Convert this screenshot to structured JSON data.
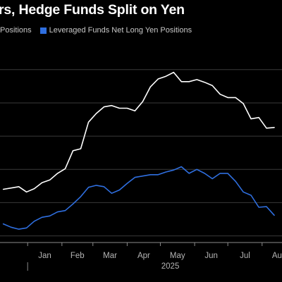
{
  "colors": {
    "background": "#000000",
    "series_white": "#ffffff",
    "series_blue": "#2f6fe0",
    "grid": "#3a3a3a",
    "axis_text": "#b4b4b4"
  },
  "chart_data": {
    "type": "line",
    "title": "rs, Hedge Funds Split on Yen",
    "legend": [
      "Positions",
      "Leveraged Funds Net Long Yen Positions"
    ],
    "x_tick_labels": [
      "Jan",
      "Feb",
      "Mar",
      "Apr",
      "May",
      "Jun",
      "Jul",
      "Aug"
    ],
    "x_year_label": "2025",
    "grid": true,
    "legend_placement": "top-left",
    "series": [
      {
        "name": "Positions",
        "color": "#ffffff",
        "points": [
          [
            "2024-12-10",
            44
          ],
          [
            "2024-12-17",
            46
          ],
          [
            "2024-12-24",
            48
          ],
          [
            "2024-12-31",
            40
          ],
          [
            "2025-01-07",
            45
          ],
          [
            "2025-01-14",
            54
          ],
          [
            "2025-01-21",
            58
          ],
          [
            "2025-01-28",
            68
          ],
          [
            "2025-02-04",
            75
          ],
          [
            "2025-02-11",
            102
          ],
          [
            "2025-02-18",
            105
          ],
          [
            "2025-02-25",
            145
          ],
          [
            "2025-03-04",
            158
          ],
          [
            "2025-03-11",
            168
          ],
          [
            "2025-03-18",
            170
          ],
          [
            "2025-03-25",
            166
          ],
          [
            "2025-04-01",
            166
          ],
          [
            "2025-04-08",
            162
          ],
          [
            "2025-04-15",
            176
          ],
          [
            "2025-04-22",
            198
          ],
          [
            "2025-04-29",
            210
          ],
          [
            "2025-05-06",
            214
          ],
          [
            "2025-05-13",
            220
          ],
          [
            "2025-05-20",
            206
          ],
          [
            "2025-05-27",
            206
          ],
          [
            "2025-06-03",
            209
          ],
          [
            "2025-06-10",
            205
          ],
          [
            "2025-06-17",
            200
          ],
          [
            "2025-06-24",
            187
          ],
          [
            "2025-07-01",
            182
          ],
          [
            "2025-07-08",
            182
          ],
          [
            "2025-07-15",
            173
          ],
          [
            "2025-07-22",
            150
          ],
          [
            "2025-07-29",
            152
          ],
          [
            "2025-08-05",
            136
          ],
          [
            "2025-08-12",
            137
          ]
        ]
      },
      {
        "name": "Leveraged Funds Net Long Yen Positions",
        "color": "#2f6fe0",
        "points": [
          [
            "2024-12-10",
            -8
          ],
          [
            "2024-12-17",
            -13
          ],
          [
            "2024-12-24",
            -16
          ],
          [
            "2024-12-31",
            -14
          ],
          [
            "2025-01-07",
            -4
          ],
          [
            "2025-01-14",
            2
          ],
          [
            "2025-01-21",
            4
          ],
          [
            "2025-01-28",
            10
          ],
          [
            "2025-02-04",
            12
          ],
          [
            "2025-02-11",
            22
          ],
          [
            "2025-02-18",
            33
          ],
          [
            "2025-02-25",
            47
          ],
          [
            "2025-03-04",
            50
          ],
          [
            "2025-03-11",
            48
          ],
          [
            "2025-03-18",
            38
          ],
          [
            "2025-03-25",
            43
          ],
          [
            "2025-04-01",
            53
          ],
          [
            "2025-04-08",
            62
          ],
          [
            "2025-04-15",
            64
          ],
          [
            "2025-04-22",
            66
          ],
          [
            "2025-04-29",
            66
          ],
          [
            "2025-05-06",
            70
          ],
          [
            "2025-05-13",
            73
          ],
          [
            "2025-05-20",
            78
          ],
          [
            "2025-05-27",
            68
          ],
          [
            "2025-06-03",
            74
          ],
          [
            "2025-06-10",
            68
          ],
          [
            "2025-06-17",
            60
          ],
          [
            "2025-06-24",
            68
          ],
          [
            "2025-07-01",
            68
          ],
          [
            "2025-07-08",
            56
          ],
          [
            "2025-07-15",
            40
          ],
          [
            "2025-07-22",
            35
          ],
          [
            "2025-07-29",
            17
          ],
          [
            "2025-08-05",
            18
          ],
          [
            "2025-08-12",
            5
          ]
        ]
      }
    ],
    "ylim": [
      -36,
      263
    ],
    "y_gridlines": [
      -26,
      24,
      74,
      124,
      174,
      224
    ]
  }
}
